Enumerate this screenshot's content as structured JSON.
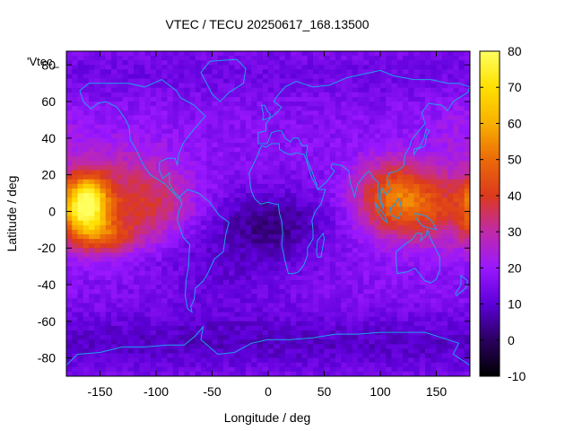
{
  "chart_data": {
    "type": "heatmap",
    "title": "VTEC / TECU 20250617_168.13500",
    "xlabel": "Longitude / deg",
    "ylabel": "Latitude / deg",
    "legend_entry": "'Vtec_",
    "xlim": [
      -180,
      180
    ],
    "ylim": [
      -90,
      87.5
    ],
    "xticks": [
      -150,
      -100,
      -50,
      0,
      50,
      100,
      150
    ],
    "yticks": [
      -80,
      -60,
      -40,
      -20,
      0,
      20,
      40,
      60,
      80
    ],
    "colorbar": {
      "min": -10,
      "max": 80,
      "ticks": [
        -10,
        0,
        10,
        20,
        30,
        40,
        50,
        60,
        70,
        80
      ]
    },
    "palette": [
      "#000000",
      "#2a0060",
      "#5c00d8",
      "#9a18ff",
      "#c02aa8",
      "#dc3a1c",
      "#ec6a08",
      "#f8b000",
      "#ffe000",
      "#ffff60"
    ],
    "coastline_color": "#1ea0e8",
    "grid": false,
    "grid_resolution": {
      "lon_step_deg": 5,
      "lat_step_deg": 2.5
    },
    "field_summary": [
      {
        "region": "central Pacific equatorial anomaly",
        "lon": -160,
        "lat": 0,
        "peak_tecu": 72
      },
      {
        "region": "Asia / Maritime Continent equatorial anomaly",
        "lon": 110,
        "lat": 5,
        "peak_tecu": 48
      },
      {
        "region": "tropical Atlantic / Africa night side",
        "lon": 5,
        "lat": -8,
        "min_tecu": 2
      },
      {
        "region": "Antarctic",
        "lon": 30,
        "lat": -70,
        "min_tecu": 5
      },
      {
        "region": "background mid-latitudes",
        "typical_tecu": 18
      }
    ]
  }
}
